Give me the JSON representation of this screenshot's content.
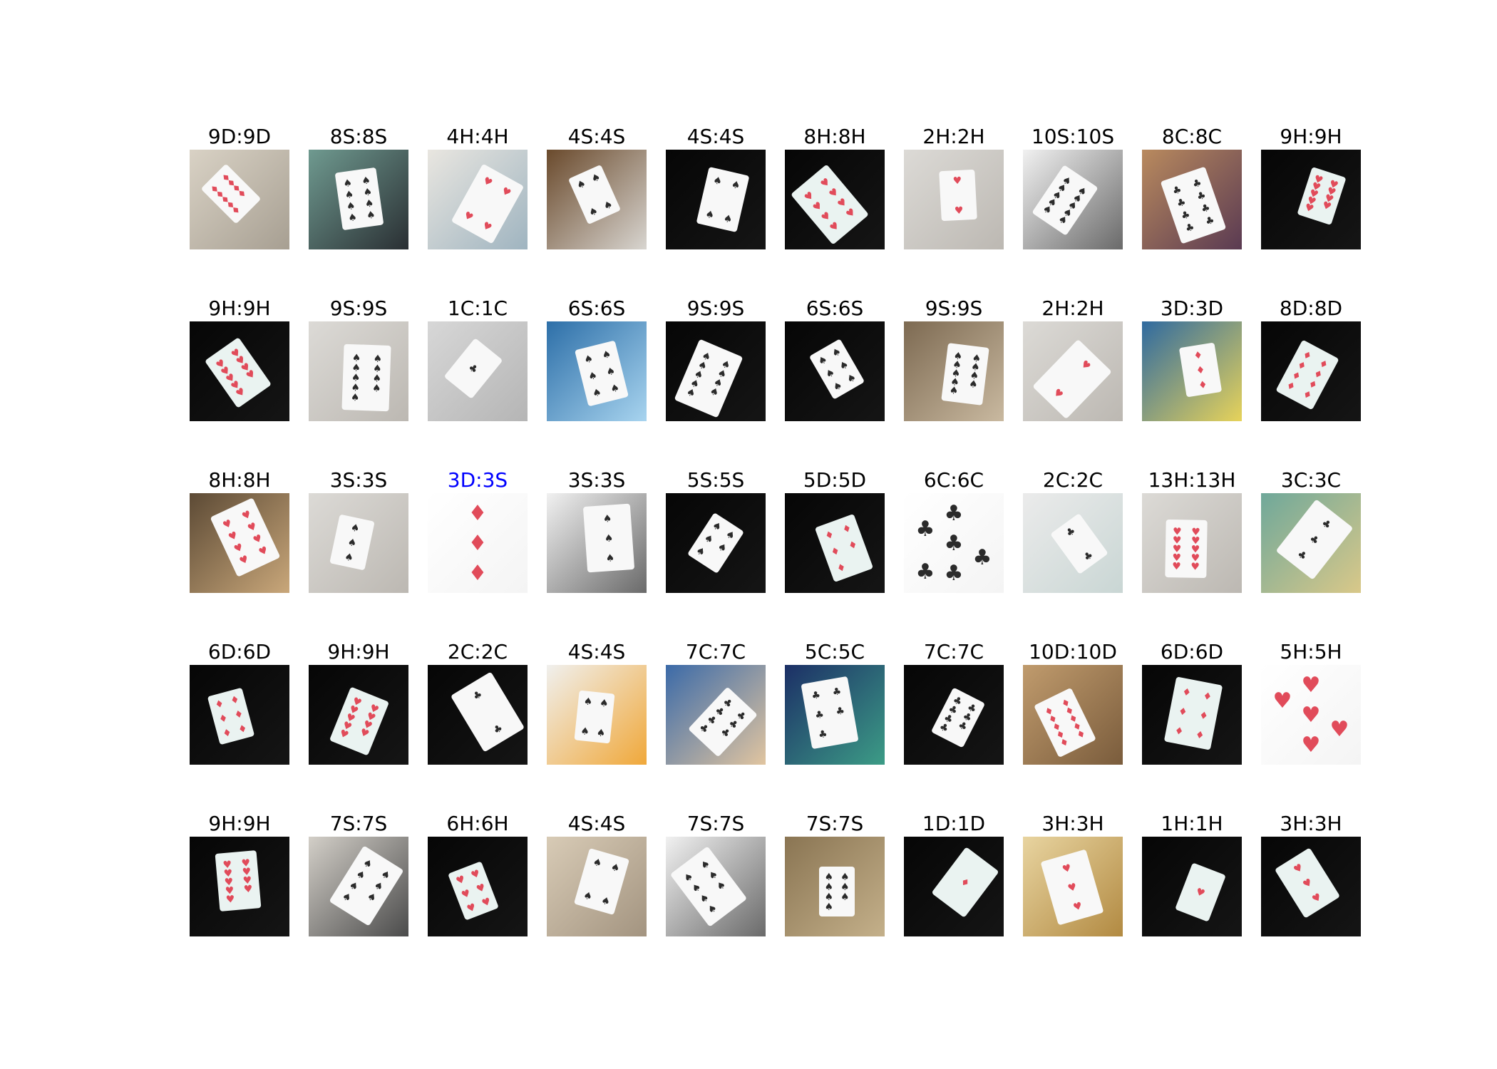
{
  "colors": {
    "correct": "#000000",
    "mismatch": "#0000ff"
  },
  "predictions": [
    {
      "label": "9D:9D",
      "bg": "book",
      "rank": "9",
      "suit": "D"
    },
    {
      "label": "8S:8S",
      "bg": "shelf",
      "rank": "8",
      "suit": "S"
    },
    {
      "label": "4H:4H",
      "bg": "poster",
      "rank": "4",
      "suit": "H"
    },
    {
      "label": "4S:4S",
      "bg": "desk",
      "rank": "4",
      "suit": "S"
    },
    {
      "label": "4S:4S",
      "bg": "dark",
      "rank": "4",
      "suit": "S"
    },
    {
      "label": "8H:8H",
      "bg": "dark",
      "rank": "8",
      "suit": "H"
    },
    {
      "label": "2H:2H",
      "bg": "paper",
      "rank": "2",
      "suit": "H"
    },
    {
      "label": "10S:10S",
      "bg": "manga",
      "rank": "10",
      "suit": "S"
    },
    {
      "label": "8C:8C",
      "bg": "books",
      "rank": "8",
      "suit": "C"
    },
    {
      "label": "9H:9H",
      "bg": "dark",
      "rank": "9",
      "suit": "H"
    },
    {
      "label": "9H:9H",
      "bg": "dark",
      "rank": "9",
      "suit": "H"
    },
    {
      "label": "9S:9S",
      "bg": "paper",
      "rank": "9",
      "suit": "S"
    },
    {
      "label": "1C:1C",
      "bg": "wall",
      "rank": "1",
      "suit": "C"
    },
    {
      "label": "6S:6S",
      "bg": "bluebook",
      "rank": "6",
      "suit": "S"
    },
    {
      "label": "9S:9S",
      "bg": "dark",
      "rank": "9",
      "suit": "S"
    },
    {
      "label": "6S:6S",
      "bg": "dark",
      "rank": "6",
      "suit": "S"
    },
    {
      "label": "9S:9S",
      "bg": "magazine",
      "rank": "9",
      "suit": "S"
    },
    {
      "label": "2H:2H",
      "bg": "paper",
      "rank": "2",
      "suit": "H"
    },
    {
      "label": "3D:3D",
      "bg": "colorful",
      "rank": "3",
      "suit": "D"
    },
    {
      "label": "8D:8D",
      "bg": "dark",
      "rank": "8",
      "suit": "D"
    },
    {
      "label": "8H:8H",
      "bg": "box",
      "rank": "8",
      "suit": "H"
    },
    {
      "label": "3S:3S",
      "bg": "paper",
      "rank": "3",
      "suit": "S"
    },
    {
      "label": "3D:3S",
      "bg": "whitecard",
      "rank": "3",
      "suit": "D",
      "mismatch": true
    },
    {
      "label": "3S:3S",
      "bg": "manga",
      "rank": "3",
      "suit": "S"
    },
    {
      "label": "5S:5S",
      "bg": "dark",
      "rank": "5",
      "suit": "S"
    },
    {
      "label": "5D:5D",
      "bg": "dark",
      "rank": "5",
      "suit": "D"
    },
    {
      "label": "6C:6C",
      "bg": "whitecard",
      "rank": "6",
      "suit": "C"
    },
    {
      "label": "2C:2C",
      "bg": "table",
      "rank": "2",
      "suit": "C"
    },
    {
      "label": "13H:13H",
      "bg": "paper",
      "rank": "13",
      "suit": "H"
    },
    {
      "label": "3C:3C",
      "bg": "greenbook",
      "rank": "3",
      "suit": "C"
    },
    {
      "label": "6D:6D",
      "bg": "dark",
      "rank": "6",
      "suit": "D"
    },
    {
      "label": "9H:9H",
      "bg": "dark",
      "rank": "9",
      "suit": "H"
    },
    {
      "label": "2C:2C",
      "bg": "dark",
      "rank": "2",
      "suit": "C"
    },
    {
      "label": "4S:4S",
      "bg": "orangebook",
      "rank": "4",
      "suit": "S"
    },
    {
      "label": "7C:7C",
      "bg": "comic",
      "rank": "7",
      "suit": "C"
    },
    {
      "label": "5C:5C",
      "bg": "navybook",
      "rank": "5",
      "suit": "C"
    },
    {
      "label": "7C:7C",
      "bg": "dark",
      "rank": "7",
      "suit": "C"
    },
    {
      "label": "10D:10D",
      "bg": "woodtable",
      "rank": "10",
      "suit": "D"
    },
    {
      "label": "6D:6D",
      "bg": "dark",
      "rank": "6",
      "suit": "D"
    },
    {
      "label": "5H:5H",
      "bg": "whitecard",
      "rank": "5",
      "suit": "H"
    },
    {
      "label": "9H:9H",
      "bg": "dark",
      "rank": "9",
      "suit": "H"
    },
    {
      "label": "7S:7S",
      "bg": "room",
      "rank": "7",
      "suit": "S"
    },
    {
      "label": "6H:6H",
      "bg": "dark",
      "rank": "6",
      "suit": "H"
    },
    {
      "label": "4S:4S",
      "bg": "textbook",
      "rank": "4",
      "suit": "S"
    },
    {
      "label": "7S:7S",
      "bg": "manga",
      "rank": "7",
      "suit": "S"
    },
    {
      "label": "7S:7S",
      "bg": "brown",
      "rank": "7",
      "suit": "S"
    },
    {
      "label": "1D:1D",
      "bg": "dark",
      "rank": "1",
      "suit": "D"
    },
    {
      "label": "3H:3H",
      "bg": "yellowbook",
      "rank": "3",
      "suit": "H"
    },
    {
      "label": "1H:1H",
      "bg": "dark",
      "rank": "1",
      "suit": "H"
    },
    {
      "label": "3H:3H",
      "bg": "dark",
      "rank": "3",
      "suit": "H"
    }
  ]
}
